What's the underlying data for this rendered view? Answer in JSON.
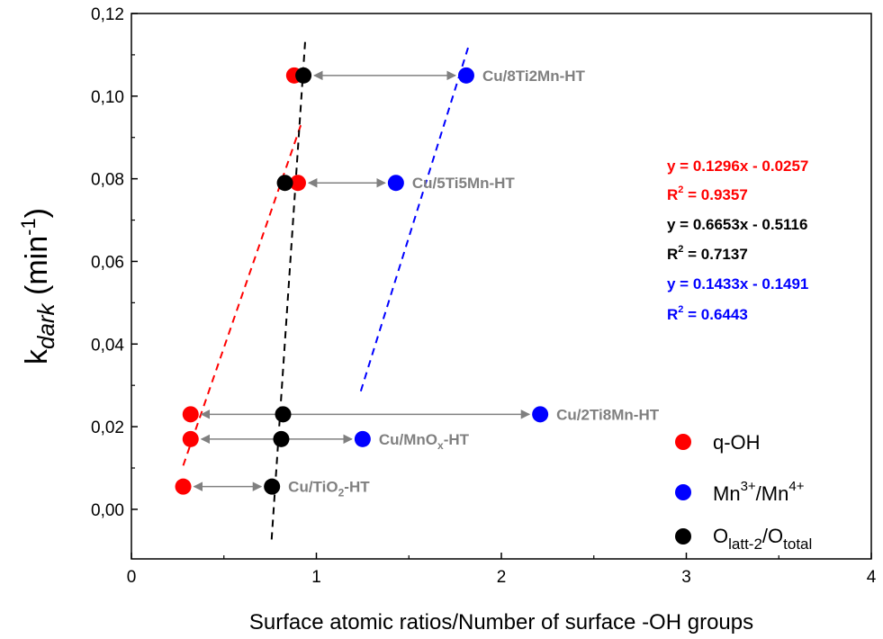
{
  "chart_data": {
    "type": "scatter",
    "title": "",
    "xlabel": "Surface atomic ratios/Number of surface -OH groups",
    "ylabel": {
      "base": "k",
      "sub": "dark",
      "unit_open": " (min",
      "unit_sup": "-1",
      "unit_close": ")"
    },
    "xlim": [
      0,
      4
    ],
    "ylim": [
      -0.012,
      0.12
    ],
    "x_ticks": [
      0,
      1,
      2,
      3,
      4
    ],
    "x_tick_labels": [
      "0",
      "1",
      "2",
      "3",
      "4"
    ],
    "y_ticks": [
      0.0,
      0.02,
      0.04,
      0.06,
      0.08,
      0.1,
      0.12
    ],
    "y_tick_labels": [
      "0,00",
      "0,02",
      "0,04",
      "0,06",
      "0,08",
      "0,10",
      "0,12"
    ],
    "grid": false,
    "legend_position": "bottom-right",
    "series": [
      {
        "key": "qoh",
        "legend": "q-OH",
        "color": "#ff0000",
        "points": [
          [
            0.28,
            0.0055
          ],
          [
            0.32,
            0.017
          ],
          [
            0.32,
            0.023
          ],
          [
            0.9,
            0.079
          ],
          [
            0.88,
            0.105
          ]
        ],
        "fit": {
          "x_range": [
            0.28,
            0.92
          ],
          "equation": "y = 0.1296x - 0.0257",
          "r2_base": "R",
          "r2_sup": "2",
          "r2_value": " = 0.9357"
        }
      },
      {
        "key": "mn",
        "legend_base": "Mn",
        "legend_sup1": "3+",
        "legend_mid": "/Mn",
        "legend_sup2": "4+",
        "color": "#0000ff",
        "points": [
          [
            1.25,
            0.017
          ],
          [
            2.21,
            0.023
          ],
          [
            1.43,
            0.079
          ],
          [
            1.81,
            0.105
          ]
        ],
        "fit": {
          "x_range": [
            1.24,
            1.82
          ],
          "equation": "y = 0.1433x - 0.1491",
          "r2_base": "R",
          "r2_sup": "2",
          "r2_value": " = 0.6443"
        }
      },
      {
        "key": "olatt",
        "legend_base": "O",
        "legend_sub1": "latt-2",
        "legend_mid": "/O",
        "legend_sub2": "total",
        "color": "#000000",
        "points": [
          [
            0.76,
            0.0055
          ],
          [
            0.81,
            0.017
          ],
          [
            0.82,
            0.023
          ],
          [
            0.83,
            0.079
          ],
          [
            0.93,
            0.105
          ]
        ],
        "fit": {
          "x_range": [
            0.758,
            0.94
          ],
          "equation": "y = 0.6653x - 0.5116",
          "r2_base": "R",
          "r2_sup": "2",
          "r2_value": " = 0.7137"
        }
      }
    ],
    "sample_labels": [
      {
        "label": "Cu/8Ti2Mn-HT",
        "x": 1.81,
        "y": 0.105,
        "arrow_from": 0.93
      },
      {
        "label": "Cu/5Ti5Mn-HT",
        "x": 1.43,
        "y": 0.079,
        "arrow_from": 0.9
      },
      {
        "label": "Cu/2Ti8Mn-HT",
        "x": 2.21,
        "y": 0.023,
        "arrow_from": 0.32
      },
      {
        "label_base": "Cu/MnO",
        "label_sub": "x",
        "label_tail": "-HT",
        "x": 1.25,
        "y": 0.017,
        "arrow_from": 0.32
      },
      {
        "label_base": "Cu/TiO",
        "label_sub": "2",
        "label_tail": "-HT",
        "x": 0.76,
        "y": 0.0055,
        "arrow_from": 0.28
      }
    ]
  }
}
